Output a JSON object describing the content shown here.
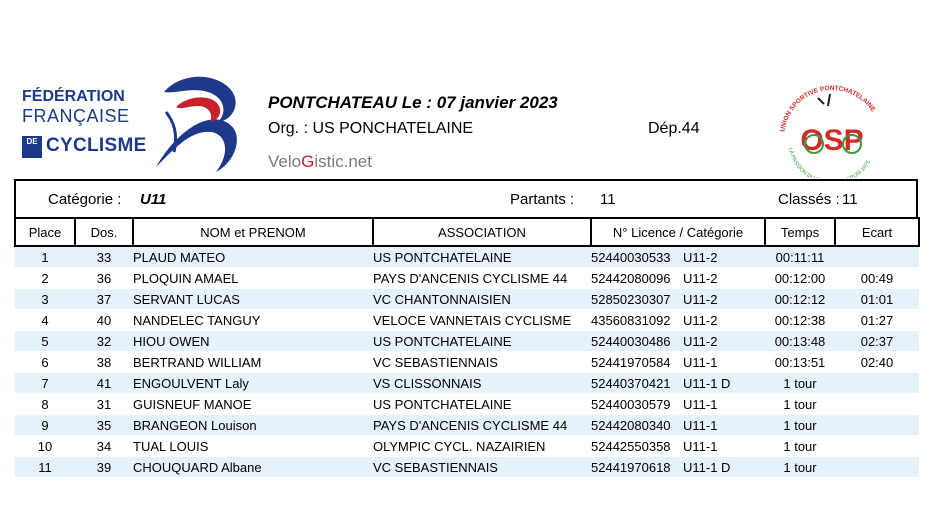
{
  "header": {
    "logo_left": {
      "line1": "FÉDÉRATION",
      "line2": "FRANÇAISE",
      "de": "DE",
      "line3": "CYCLISME"
    },
    "title": "PONTCHATEAU  Le :  07 janvier 2023",
    "org": "Org. :  US PONCHATELAINE",
    "dep": "Dép.44",
    "velo_prefix": "Velo",
    "velo_g": "G",
    "velo_suffix": "istic.net",
    "logo_right": {
      "arc_top": "UNION SPORTIVE PONTCHATELAINE",
      "arc_bottom": "LA PASSION DU CYCLISME DEPUIS 1975",
      "letters": "OSP"
    }
  },
  "info": {
    "category_label": "Catégorie :",
    "category_value": "U11",
    "partants_label": "Partants :",
    "partants_value": "11",
    "classes_label": "Classés :",
    "classes_value": "11"
  },
  "table": {
    "headers": [
      "Place",
      "Dos.",
      "NOM et PRENOM",
      "ASSOCIATION",
      "N° Licence / Catégorie",
      "Temps",
      "Ecart"
    ],
    "rows": [
      {
        "place": "1",
        "dos": "33",
        "name": "PLAUD  MATEO",
        "assoc": "US PONTCHATELAINE",
        "licence": "52440030533",
        "cat": "U11-2",
        "temps": "00:11:11",
        "ecart": ""
      },
      {
        "place": "2",
        "dos": "36",
        "name": "PLOQUIN  AMAEL",
        "assoc": "PAYS D'ANCENIS CYCLISME 44",
        "licence": "52442080096",
        "cat": "U11-2",
        "temps": "00:12:00",
        "ecart": "00:49"
      },
      {
        "place": "3",
        "dos": "37",
        "name": "SERVANT  LUCAS",
        "assoc": "VC CHANTONNAISIEN",
        "licence": "52850230307",
        "cat": "U11-2",
        "temps": "00:12:12",
        "ecart": "01:01"
      },
      {
        "place": "4",
        "dos": "40",
        "name": "NANDELEC  TANGUY",
        "assoc": "VELOCE VANNETAIS CYCLISME",
        "licence": "43560831092",
        "cat": "U11-2",
        "temps": "00:12:38",
        "ecart": "01:27"
      },
      {
        "place": "5",
        "dos": "32",
        "name": "HIOU  OWEN",
        "assoc": "US PONTCHATELAINE",
        "licence": "52440030486",
        "cat": "U11-2",
        "temps": "00:13:48",
        "ecart": "02:37"
      },
      {
        "place": "6",
        "dos": "38",
        "name": "BERTRAND  WILLIAM",
        "assoc": "VC SEBASTIENNAIS",
        "licence": "52441970584",
        "cat": "U11-1",
        "temps": "00:13:51",
        "ecart": "02:40"
      },
      {
        "place": "7",
        "dos": "41",
        "name": "ENGOULVENT  Laly",
        "assoc": "VS CLISSONNAIS",
        "licence": "52440370421",
        "cat": "U11-1 D",
        "temps": "1 tour",
        "ecart": ""
      },
      {
        "place": "8",
        "dos": "31",
        "name": "GUISNEUF  MANOE",
        "assoc": "US PONTCHATELAINE",
        "licence": "52440030579",
        "cat": "U11-1",
        "temps": "1 tour",
        "ecart": ""
      },
      {
        "place": "9",
        "dos": "35",
        "name": "BRANGEON  Louison",
        "assoc": "PAYS D'ANCENIS CYCLISME 44",
        "licence": "52442080340",
        "cat": "U11-1",
        "temps": "1 tour",
        "ecart": ""
      },
      {
        "place": "10",
        "dos": "34",
        "name": "TUAL  LOUIS",
        "assoc": "OLYMPIC CYCL. NAZAIRIEN",
        "licence": "52442550358",
        "cat": "U11-1",
        "temps": "1 tour",
        "ecart": ""
      },
      {
        "place": "11",
        "dos": "39",
        "name": "CHOUQUARD  Albane",
        "assoc": "VC SEBASTIENNAIS",
        "licence": "52441970618",
        "cat": "U11-1 D",
        "temps": "1 tour",
        "ecart": ""
      }
    ]
  },
  "colors": {
    "ffc_blue": "#1d3a8a",
    "ffc_red": "#c8202b",
    "row_shade": "#e6f2f9",
    "osp_green": "#3a9a3a",
    "osp_red": "#d42a2a"
  }
}
